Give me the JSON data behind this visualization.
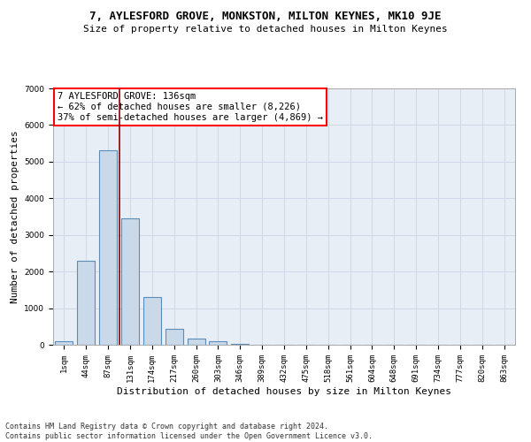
{
  "title": "7, AYLESFORD GROVE, MONKSTON, MILTON KEYNES, MK10 9JE",
  "subtitle": "Size of property relative to detached houses in Milton Keynes",
  "xlabel": "Distribution of detached houses by size in Milton Keynes",
  "ylabel": "Number of detached properties",
  "bar_labels": [
    "1sqm",
    "44sqm",
    "87sqm",
    "131sqm",
    "174sqm",
    "217sqm",
    "260sqm",
    "303sqm",
    "346sqm",
    "389sqm",
    "432sqm",
    "475sqm",
    "518sqm",
    "561sqm",
    "604sqm",
    "648sqm",
    "691sqm",
    "734sqm",
    "777sqm",
    "820sqm",
    "863sqm"
  ],
  "bar_values": [
    100,
    2300,
    5300,
    3450,
    1300,
    430,
    170,
    100,
    30,
    10,
    5,
    3,
    2,
    1,
    1,
    1,
    1,
    0,
    0,
    0,
    0
  ],
  "bar_color": "#c9d9ea",
  "bar_edge_color": "#5b8db8",
  "marker_line_color": "#8b0000",
  "annotation_text": "7 AYLESFORD GROVE: 136sqm\n← 62% of detached houses are smaller (8,226)\n37% of semi-detached houses are larger (4,869) →",
  "annotation_box_color": "white",
  "annotation_box_edge": "red",
  "ylim": [
    0,
    7000
  ],
  "yticks": [
    0,
    1000,
    2000,
    3000,
    4000,
    5000,
    6000,
    7000
  ],
  "grid_color": "#d0d8e8",
  "bg_color": "#e8eef5",
  "footer": "Contains HM Land Registry data © Crown copyright and database right 2024.\nContains public sector information licensed under the Open Government Licence v3.0.",
  "title_fontsize": 9,
  "subtitle_fontsize": 8,
  "xlabel_fontsize": 8,
  "ylabel_fontsize": 8,
  "tick_fontsize": 6.5,
  "footer_fontsize": 6,
  "annotation_fontsize": 7.5
}
